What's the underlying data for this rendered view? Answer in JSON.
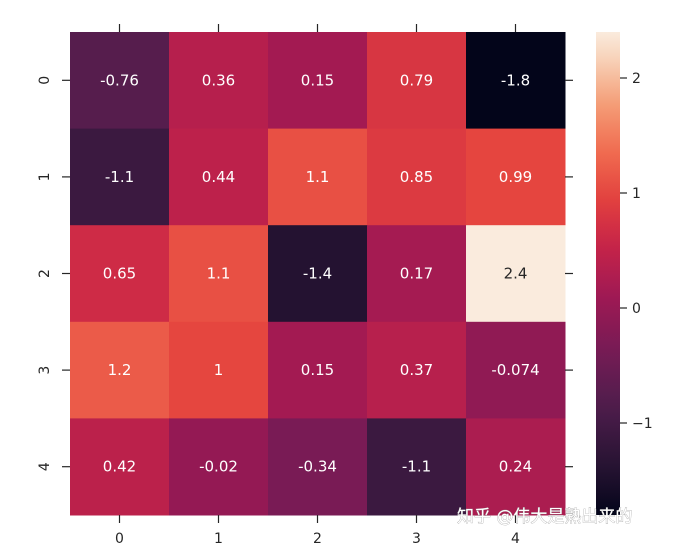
{
  "chart_data": {
    "type": "heatmap",
    "x_categories": [
      "0",
      "1",
      "2",
      "3",
      "4"
    ],
    "y_categories": [
      "0",
      "1",
      "2",
      "3",
      "4"
    ],
    "values": [
      [
        -0.76,
        0.36,
        0.15,
        0.79,
        -1.8
      ],
      [
        -1.1,
        0.44,
        1.1,
        0.85,
        0.99
      ],
      [
        0.65,
        1.1,
        -1.4,
        0.17,
        2.4
      ],
      [
        1.2,
        1,
        0.15,
        0.37,
        -0.074
      ],
      [
        0.42,
        -0.02,
        -0.34,
        -1.1,
        0.24
      ]
    ],
    "annotations": [
      [
        "-0.76",
        "0.36",
        "0.15",
        "0.79",
        "-1.8"
      ],
      [
        "-1.1",
        "0.44",
        "1.1",
        "0.85",
        "0.99"
      ],
      [
        "0.65",
        "1.1",
        "-1.4",
        "0.17",
        "2.4"
      ],
      [
        "1.2",
        "1",
        "0.15",
        "0.37",
        "-0.074"
      ],
      [
        "0.42",
        "-0.02",
        "-0.34",
        "-1.1",
        "0.24"
      ]
    ],
    "colormap": "rocket",
    "vmin": -1.8,
    "vmax": 2.4,
    "colorbar": {
      "ticks": [
        2,
        1,
        0,
        -1
      ],
      "tick_labels": [
        "2",
        "1",
        "0",
        "−1"
      ],
      "position": "right"
    },
    "title": "",
    "xlabel": "",
    "ylabel": ""
  },
  "watermark": "知乎 @伟大是熟出来的"
}
